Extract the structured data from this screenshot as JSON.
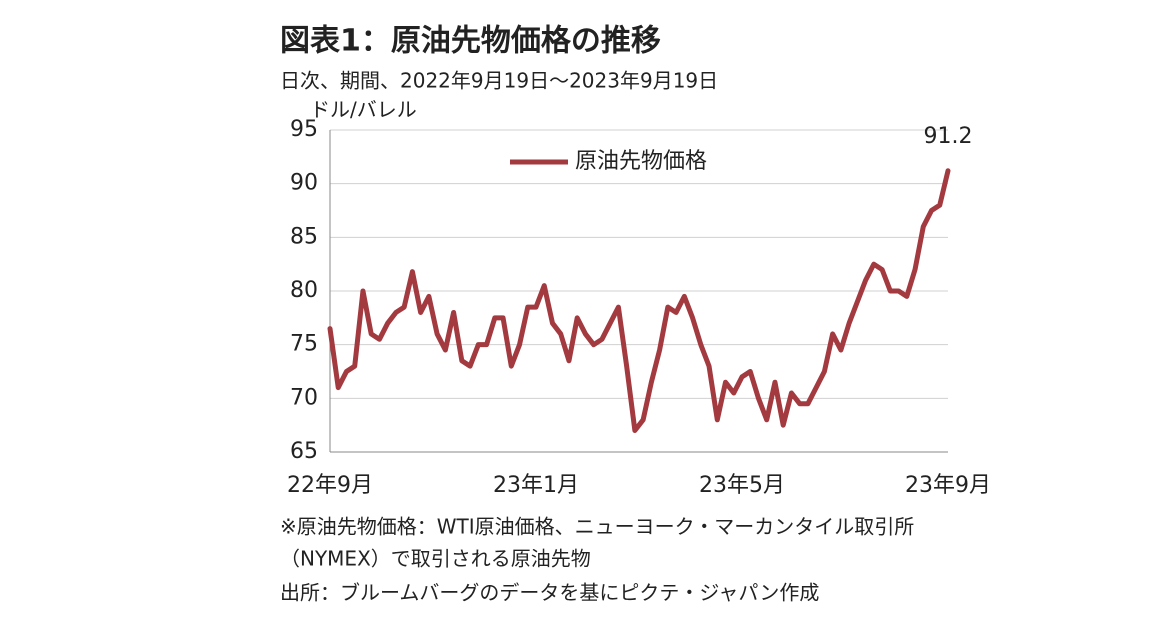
{
  "chart_data": {
    "type": "line",
    "title": "図表1：原油先物価格の推移",
    "subtitle": "日次、期間、2022年9月19日～2023年9月19日",
    "y_axis_label": "ドル/バレル",
    "categories": [
      "22年9月",
      null,
      null,
      null,
      null,
      null,
      null,
      null,
      null,
      null,
      null,
      null,
      null,
      null,
      null,
      null,
      null,
      null,
      null,
      null,
      null,
      null,
      null,
      null,
      null,
      "23年1月",
      null,
      null,
      null,
      null,
      null,
      null,
      null,
      null,
      null,
      null,
      null,
      null,
      null,
      null,
      null,
      null,
      null,
      null,
      null,
      null,
      null,
      null,
      null,
      null,
      "23年5月",
      null,
      null,
      null,
      null,
      null,
      null,
      null,
      null,
      null,
      null,
      null,
      null,
      null,
      null,
      null,
      null,
      null,
      null,
      null,
      null,
      null,
      null,
      null,
      null,
      "23年9月"
    ],
    "series": [
      {
        "name": "原油先物価格",
        "color": "#a33a40",
        "values": [
          76.5,
          71,
          72.5,
          73,
          80,
          76,
          75.5,
          77,
          78,
          78.5,
          81.8,
          78,
          79.5,
          76,
          74.5,
          78,
          73.5,
          73,
          75,
          75,
          77.5,
          77.5,
          73,
          75,
          78.5,
          78.5,
          80.5,
          77,
          76,
          73.5,
          77.5,
          76,
          75,
          75.5,
          77,
          78.5,
          73,
          67,
          68,
          71.5,
          74.5,
          78.5,
          78,
          79.5,
          77.5,
          75,
          73,
          68,
          71.5,
          70.5,
          72,
          72.5,
          70,
          68,
          71.5,
          67.5,
          70.5,
          69.5,
          69.5,
          71,
          72.5,
          76,
          74.5,
          77,
          79,
          81,
          82.5,
          82,
          80,
          80,
          79.5,
          82,
          86,
          87.5,
          88,
          91.2
        ]
      }
    ],
    "ylim": [
      65,
      95
    ],
    "yticks": [
      65,
      70,
      75,
      80,
      85,
      90,
      95
    ],
    "grid": true,
    "legend": "top",
    "notes": [
      "※原油先物価格：WTI原油価格、ニューヨーク・マーカンタイル取引所",
      "（NYMEX）で取引される原油先物",
      "出所：ブルームバーグのデータを基にピクテ・ジャパン作成"
    ]
  }
}
